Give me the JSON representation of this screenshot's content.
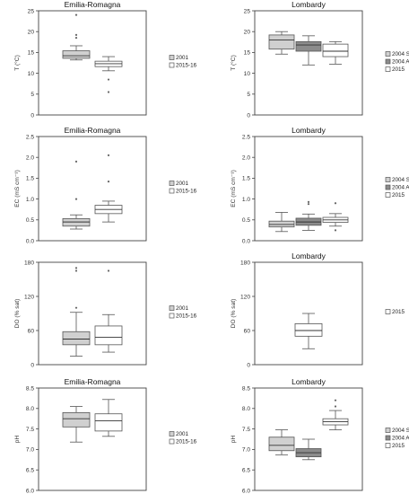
{
  "colors": {
    "sum": "#d0d0d0",
    "aut": "#8c8c8c",
    "open": "#ffffff",
    "outline": "#555555",
    "outlier": "#666666"
  },
  "chart_data": [
    {
      "type": "box",
      "title": "Emilia-Romagna",
      "ylabel": "T (°C)",
      "ylim": [
        0,
        25
      ],
      "yticks": [
        "0",
        "5",
        "10",
        "15",
        "20",
        "25"
      ],
      "legend": [
        "2001",
        "2015-16"
      ],
      "series": [
        {
          "name": "2001",
          "fill": "sum",
          "min": 13.2,
          "q1": 13.6,
          "median": 14.2,
          "q3": 15.4,
          "max": 16.6,
          "outliers": [
            18.5,
            19.2,
            24.0
          ]
        },
        {
          "name": "2015-16",
          "fill": "open",
          "min": 10.6,
          "q1": 11.6,
          "median": 12.3,
          "q3": 12.9,
          "max": 14.0,
          "outliers": [
            8.5,
            5.5
          ]
        }
      ]
    },
    {
      "type": "box",
      "title": "Lombardy",
      "ylabel": "T (°C)",
      "ylim": [
        0,
        25
      ],
      "yticks": [
        "0",
        "5",
        "10",
        "15",
        "20",
        "25"
      ],
      "legend": [
        "2004 SUM",
        "2004 AUT",
        "2015"
      ],
      "series": [
        {
          "name": "2004 SUM",
          "fill": "sum",
          "min": 14.6,
          "q1": 15.8,
          "median": 18.0,
          "q3": 19.2,
          "max": 20.0,
          "outliers": []
        },
        {
          "name": "2004 AUT",
          "fill": "aut",
          "min": 12.0,
          "q1": 15.3,
          "median": 16.8,
          "q3": 17.6,
          "max": 19.0,
          "outliers": []
        },
        {
          "name": "2015",
          "fill": "open",
          "min": 12.2,
          "q1": 14.0,
          "median": 15.3,
          "q3": 17.0,
          "max": 17.6,
          "outliers": []
        }
      ]
    },
    {
      "type": "box",
      "title": "Emilia-Romagna",
      "ylabel": "EC (mS cm⁻¹)",
      "ylim": [
        0,
        2.5
      ],
      "yticks": [
        "0.0",
        "0.5",
        "1.0",
        "1.5",
        "2.0",
        "2.5"
      ],
      "legend": [
        "2001",
        "2015-16"
      ],
      "series": [
        {
          "name": "2001",
          "fill": "sum",
          "min": 0.28,
          "q1": 0.35,
          "median": 0.45,
          "q3": 0.53,
          "max": 0.62,
          "outliers": [
            1.0,
            1.9
          ]
        },
        {
          "name": "2015-16",
          "fill": "open",
          "min": 0.45,
          "q1": 0.65,
          "median": 0.75,
          "q3": 0.85,
          "max": 0.95,
          "outliers": [
            1.42,
            2.05
          ]
        }
      ]
    },
    {
      "type": "box",
      "title": "Lombardy",
      "ylabel": "EC (mS cm⁻¹)",
      "ylim": [
        0,
        2.5
      ],
      "yticks": [
        "0.0",
        "0.5",
        "1.0",
        "1.5",
        "2.0",
        "2.5"
      ],
      "legend": [
        "2004 SUM",
        "2004 AUT",
        "2015"
      ],
      "series": [
        {
          "name": "2004 SUM",
          "fill": "sum",
          "min": 0.22,
          "q1": 0.33,
          "median": 0.39,
          "q3": 0.47,
          "max": 0.68,
          "outliers": []
        },
        {
          "name": "2004 AUT",
          "fill": "aut",
          "min": 0.25,
          "q1": 0.37,
          "median": 0.45,
          "q3": 0.54,
          "max": 0.64,
          "outliers": [
            0.88,
            0.93
          ]
        },
        {
          "name": "2015",
          "fill": "open",
          "min": 0.35,
          "q1": 0.44,
          "median": 0.5,
          "q3": 0.56,
          "max": 0.65,
          "outliers": [
            0.25,
            0.9
          ]
        }
      ]
    },
    {
      "type": "box",
      "title": "",
      "ylabel": "DO (% sat)",
      "ylim": [
        0,
        180
      ],
      "yticks": [
        "0",
        "60",
        "120",
        "180"
      ],
      "legend": [
        "2001",
        "2015-16"
      ],
      "series": [
        {
          "name": "2001",
          "fill": "sum",
          "min": 15,
          "q1": 35,
          "median": 45,
          "q3": 58,
          "max": 92,
          "outliers": [
            100,
            165,
            170
          ]
        },
        {
          "name": "2015-16",
          "fill": "open",
          "min": 22,
          "q1": 35,
          "median": 48,
          "q3": 68,
          "max": 88,
          "outliers": [
            165
          ]
        }
      ]
    },
    {
      "type": "box",
      "title": "Lombardy",
      "ylabel": "DO (% sat)",
      "ylim": [
        0,
        180
      ],
      "yticks": [
        "0",
        "60",
        "120",
        "180"
      ],
      "legend": [
        "2015"
      ],
      "series": [
        {
          "name": "2015",
          "fill": "open",
          "min": 28,
          "q1": 50,
          "median": 60,
          "q3": 72,
          "max": 90,
          "outliers": []
        }
      ]
    },
    {
      "type": "box",
      "title": "Emilia-Romagna",
      "ylabel": "pH",
      "ylim": [
        6.0,
        8.5
      ],
      "yticks": [
        "6.0",
        "6.5",
        "7.0",
        "7.5",
        "8.0",
        "8.5"
      ],
      "legend": [
        "2001",
        "2015-16"
      ],
      "series": [
        {
          "name": "2001",
          "fill": "sum",
          "min": 7.18,
          "q1": 7.55,
          "median": 7.75,
          "q3": 7.9,
          "max": 8.05,
          "outliers": []
        },
        {
          "name": "2015-16",
          "fill": "open",
          "min": 7.32,
          "q1": 7.45,
          "median": 7.7,
          "q3": 7.87,
          "max": 8.22,
          "outliers": []
        }
      ]
    },
    {
      "type": "box",
      "title": "Lombardy",
      "ylabel": "pH",
      "ylim": [
        6.0,
        8.5
      ],
      "yticks": [
        "6.0",
        "6.5",
        "7.0",
        "7.5",
        "8.0",
        "8.5"
      ],
      "legend": [
        "2004 SUM",
        "2004 AUT",
        "2015"
      ],
      "series": [
        {
          "name": "2004 SUM",
          "fill": "sum",
          "min": 6.87,
          "q1": 6.97,
          "median": 7.1,
          "q3": 7.3,
          "max": 7.48,
          "outliers": []
        },
        {
          "name": "2004 AUT",
          "fill": "aut",
          "min": 6.75,
          "q1": 6.82,
          "median": 6.92,
          "q3": 7.02,
          "max": 7.25,
          "outliers": []
        },
        {
          "name": "2015",
          "fill": "open",
          "min": 7.48,
          "q1": 7.6,
          "median": 7.68,
          "q3": 7.75,
          "max": 7.95,
          "outliers": [
            8.05,
            8.2
          ]
        }
      ]
    }
  ]
}
